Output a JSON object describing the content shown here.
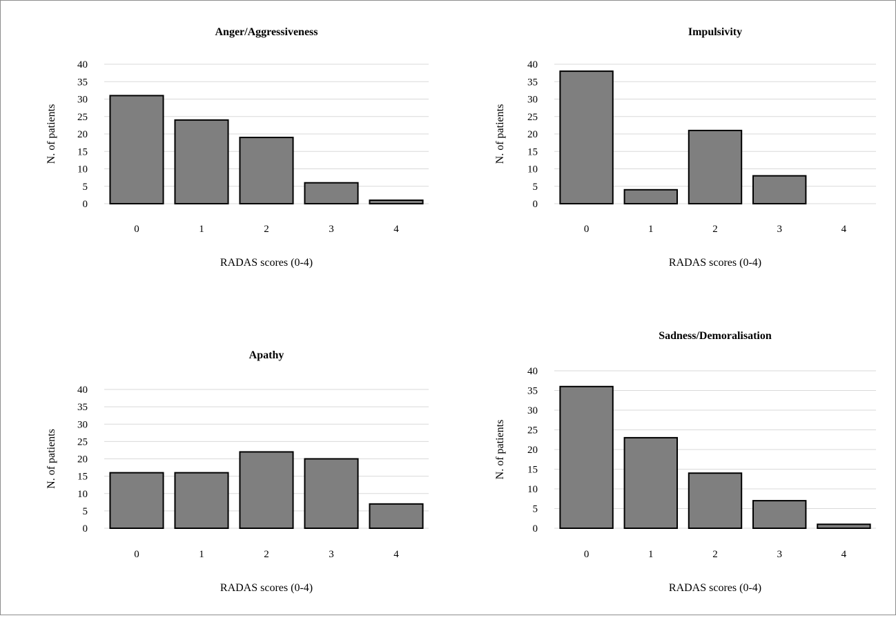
{
  "colors": {
    "bar": "#7f7f7f",
    "bar_border": "#000000",
    "grid": "#d9d9d9"
  },
  "chart_data": [
    {
      "type": "bar",
      "title": "Anger/Aggressiveness",
      "xlabel": "RADAS scores (0-4)",
      "ylabel": "N. of patients",
      "categories": [
        "0",
        "1",
        "2",
        "3",
        "4"
      ],
      "values": [
        31,
        24,
        19,
        6,
        1
      ],
      "ylim": [
        0,
        40
      ],
      "yticks": [
        0,
        5,
        10,
        15,
        20,
        25,
        30,
        35,
        40
      ],
      "grid": true,
      "legend": "none"
    },
    {
      "type": "bar",
      "title": "Impulsivity",
      "xlabel": "RADAS scores (0-4)",
      "ylabel": "N. of patients",
      "categories": [
        "0",
        "1",
        "2",
        "3",
        "4"
      ],
      "values": [
        38,
        4,
        21,
        8,
        0
      ],
      "ylim": [
        0,
        40
      ],
      "yticks": [
        0,
        5,
        10,
        15,
        20,
        25,
        30,
        35,
        40
      ],
      "grid": true,
      "legend": "none"
    },
    {
      "type": "bar",
      "title": "Apathy",
      "xlabel": "RADAS scores (0-4)",
      "ylabel": "N. of patients",
      "categories": [
        "0",
        "1",
        "2",
        "3",
        "4"
      ],
      "values": [
        16,
        16,
        22,
        20,
        7
      ],
      "ylim": [
        0,
        40
      ],
      "yticks": [
        0,
        5,
        10,
        15,
        20,
        25,
        30,
        35,
        40
      ],
      "grid": true,
      "legend": "none"
    },
    {
      "type": "bar",
      "title": "Sadness/Demoralisation",
      "xlabel": "RADAS scores (0-4)",
      "ylabel": "N. of patients",
      "categories": [
        "0",
        "1",
        "2",
        "3",
        "4"
      ],
      "values": [
        36,
        23,
        14,
        7,
        1
      ],
      "ylim": [
        0,
        40
      ],
      "yticks": [
        0,
        5,
        10,
        15,
        20,
        25,
        30,
        35,
        40
      ],
      "grid": true,
      "legend": "none"
    }
  ]
}
